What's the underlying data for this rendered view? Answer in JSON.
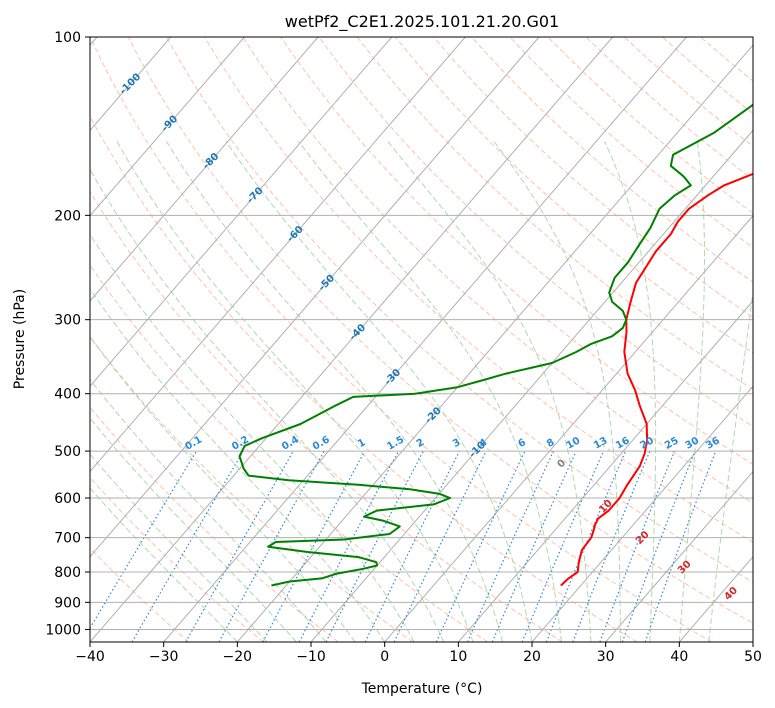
{
  "chart_data": {
    "type": "line",
    "title": "wetPf2_C2E1.2025.101.21.20.G01",
    "xlabel": "Temperature (°C)",
    "ylabel": "Pressure (hPa)",
    "xlim": [
      -40,
      50
    ],
    "ylim": [
      1050,
      100
    ],
    "y_scale": "log",
    "x_ticks": [
      "−40",
      "−30",
      "−20",
      "−10",
      "0",
      "10",
      "20",
      "30",
      "40",
      "50"
    ],
    "x_tick_values": [
      -40,
      -30,
      -20,
      -10,
      0,
      10,
      20,
      30,
      40,
      50
    ],
    "y_ticks": [
      "100",
      "200",
      "300",
      "400",
      "500",
      "600",
      "700",
      "800",
      "900",
      "1000"
    ],
    "y_tick_values": [
      100,
      200,
      300,
      400,
      500,
      600,
      700,
      800,
      900,
      1000
    ],
    "grid": true,
    "series": [
      {
        "color": "#ff0000",
        "points": [
          [
            17.3,
            843
          ],
          [
            17.5,
            820
          ],
          [
            18.0,
            800
          ],
          [
            17.0,
            770
          ],
          [
            16.0,
            735
          ],
          [
            15.8,
            700
          ],
          [
            15.4,
            685
          ],
          [
            14.8,
            665
          ],
          [
            14.5,
            650
          ],
          [
            15.0,
            630
          ],
          [
            15.0,
            600
          ],
          [
            14.5,
            570
          ],
          [
            14.0,
            530
          ],
          [
            13.2,
            505
          ],
          [
            12.0,
            480
          ],
          [
            10.0,
            450
          ],
          [
            7.0,
            420
          ],
          [
            4.5,
            395
          ],
          [
            1.5,
            370
          ],
          [
            -1.5,
            340
          ],
          [
            -3.5,
            315
          ],
          [
            -5.0,
            300
          ],
          [
            -6.5,
            280
          ],
          [
            -8.0,
            260
          ],
          [
            -8.5,
            245
          ],
          [
            -9.0,
            230
          ],
          [
            -9.0,
            215
          ],
          [
            -9.5,
            205
          ],
          [
            -9.5,
            195
          ],
          [
            -8.5,
            185
          ],
          [
            -7.5,
            178
          ],
          [
            -2.0,
            162
          ],
          [
            1.0,
            155
          ],
          [
            4.0,
            148
          ],
          [
            7.0,
            135
          ],
          [
            10.0,
            125
          ],
          [
            15.0,
            115
          ],
          [
            20.0,
            107
          ],
          [
            24.0,
            100
          ]
        ]
      },
      {
        "color": "#008000",
        "points": [
          [
            -22.0,
            843
          ],
          [
            -20.0,
            830
          ],
          [
            -16.0,
            820
          ],
          [
            -14.5,
            805
          ],
          [
            -11.5,
            790
          ],
          [
            -10.0,
            780
          ],
          [
            -10.5,
            770
          ],
          [
            -13.5,
            755
          ],
          [
            -21.0,
            740
          ],
          [
            -27.0,
            725
          ],
          [
            -26.5,
            712
          ],
          [
            -17.5,
            705
          ],
          [
            -12.0,
            690
          ],
          [
            -11.5,
            670
          ],
          [
            -14.5,
            655
          ],
          [
            -17.5,
            645
          ],
          [
            -16.5,
            630
          ],
          [
            -9.5,
            615
          ],
          [
            -8.0,
            600
          ],
          [
            -10.0,
            590
          ],
          [
            -14.5,
            580
          ],
          [
            -22.0,
            570
          ],
          [
            -32.0,
            560
          ],
          [
            -38.0,
            550
          ],
          [
            -39.5,
            535
          ],
          [
            -41.5,
            510
          ],
          [
            -42.0,
            490
          ],
          [
            -40.5,
            475
          ],
          [
            -37.0,
            450
          ],
          [
            -34.5,
            420
          ],
          [
            -33.0,
            405
          ],
          [
            -25.0,
            400
          ],
          [
            -20.0,
            390
          ],
          [
            -17.5,
            380
          ],
          [
            -15.0,
            370
          ],
          [
            -10.0,
            355
          ],
          [
            -8.0,
            340
          ],
          [
            -7.0,
            330
          ],
          [
            -5.0,
            320
          ],
          [
            -4.5,
            310
          ],
          [
            -5.0,
            300
          ],
          [
            -6.5,
            290
          ],
          [
            -9.0,
            280
          ],
          [
            -10.5,
            270
          ],
          [
            -11.5,
            255
          ],
          [
            -11.5,
            240
          ],
          [
            -12.0,
            225
          ],
          [
            -12.5,
            210
          ],
          [
            -13.5,
            195
          ],
          [
            -13.0,
            185
          ],
          [
            -12.0,
            178
          ],
          [
            -14.0,
            172
          ],
          [
            -17.0,
            165
          ],
          [
            -18.0,
            158
          ],
          [
            -15.0,
            145
          ],
          [
            -13.0,
            130
          ],
          [
            -11.0,
            120
          ],
          [
            -8.0,
            110
          ],
          [
            -4.0,
            100
          ]
        ]
      }
    ],
    "isotherm_labels": [
      "-100",
      "-90",
      "-80",
      "-70",
      "-60",
      "-50",
      "-40",
      "-30",
      "-20",
      "-10"
    ],
    "isotherm_label_values": [
      -100,
      -90,
      -80,
      -70,
      -60,
      -50,
      -40,
      -30,
      -20,
      -10
    ],
    "isotherm_label_pressures": [
      120,
      140,
      162,
      185,
      215,
      260,
      315,
      375,
      435,
      497
    ],
    "mixing_ratio_labels": [
      "0.1",
      "0.2",
      "0.4",
      "0.6",
      "1",
      "1.5",
      "2",
      "3",
      "4",
      "6",
      "8",
      "10",
      "13",
      "16",
      "20",
      "25",
      "30",
      "36"
    ],
    "mixing_ratio_values": [
      0.1,
      0.2,
      0.4,
      0.6,
      1,
      1.5,
      2,
      3,
      4,
      6,
      8,
      10,
      13,
      16,
      20,
      25,
      30,
      36
    ],
    "mixing_ratio_label_pressure": 500,
    "moist_adiabat_labels": [
      "0",
      "10",
      "20",
      "30",
      "40"
    ],
    "moist_adiabat_label_values": [
      0,
      10,
      20,
      30,
      40
    ],
    "moist_adiabat_label_temps": [
      24,
      30,
      35,
      40.7,
      47
    ],
    "moist_adiabat_label_pressures": [
      525,
      620,
      700,
      785,
      870
    ],
    "colors": {
      "temperature": "#ff0000",
      "dewpoint": "#008000",
      "isotherm": "#b0b0b0",
      "dry_adiabat": "#ffa07a",
      "moist_adiabat": "#9ccf9c",
      "mixing_ratio": "#2a8ad8",
      "isotherm_label": "#1f77b4",
      "moist_label": "#d62728",
      "zero_label": "#808080"
    }
  }
}
